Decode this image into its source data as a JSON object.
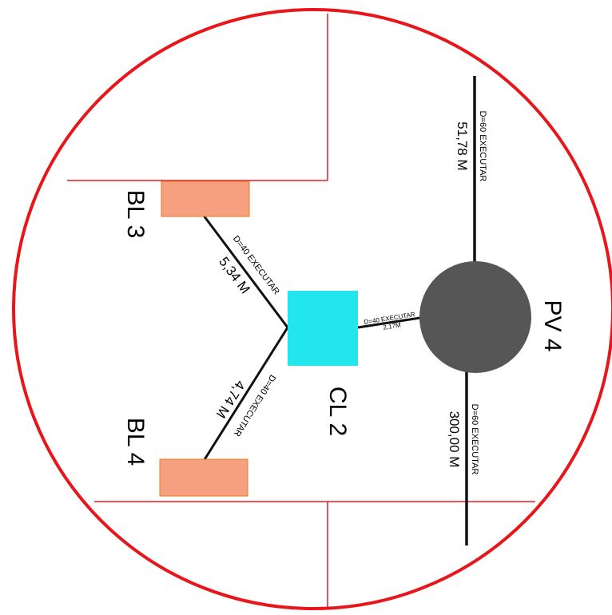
{
  "colors": {
    "circle": "#e8161b",
    "property_lines": "#e31b23",
    "pipe": "#111111",
    "pv": "#565656",
    "cl": "#22e5ee",
    "bl": "#f6a07f",
    "bl_border": "#e8771f"
  },
  "pv": {
    "label": "PV 4"
  },
  "cl": {
    "label": "CL 2"
  },
  "bl3": {
    "label": "BL 3"
  },
  "bl4": {
    "label": "BL 4"
  },
  "pipes": {
    "top": {
      "spec": "D=60 EXECUTAR",
      "length": "51,78 M"
    },
    "bottom": {
      "spec": "D=60 EXECUTAR",
      "length": "300,00 M"
    },
    "cl_pv": {
      "spec": "D=40 EXECUTAR",
      "length": "2,17M"
    },
    "bl3_cl": {
      "spec": "D=40 EXECUTAR",
      "length": "5,34 M"
    },
    "bl4_cl": {
      "spec": "D=40 EXECUTAR",
      "length": "4,74 M"
    }
  }
}
